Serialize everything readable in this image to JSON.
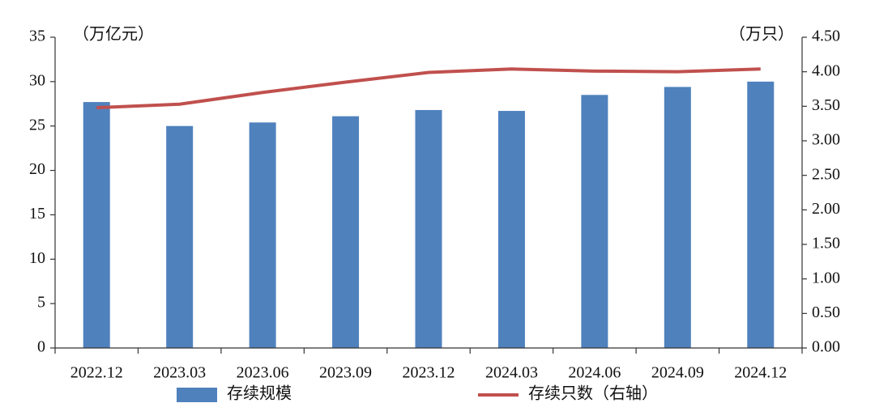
{
  "chart_data": {
    "type": "bar-line",
    "categories": [
      "2022.12",
      "2023.03",
      "2023.06",
      "2023.09",
      "2023.12",
      "2024.03",
      "2024.06",
      "2024.09",
      "2024.12"
    ],
    "y_label": "（万亿元）",
    "y2_label": "（万只）",
    "series": [
      {
        "name": "存续规模",
        "type": "bar",
        "color": "#4f81bd",
        "values": [
          27.7,
          25.0,
          25.4,
          26.1,
          26.8,
          26.7,
          28.5,
          29.4,
          30.0
        ]
      },
      {
        "name": "存续只数（右轴）",
        "type": "line",
        "axis": "y2",
        "color": "#c0504d",
        "values": [
          3.48,
          3.53,
          3.7,
          3.85,
          3.99,
          4.04,
          4.01,
          4.0,
          4.04
        ]
      }
    ],
    "ylim": [
      0,
      35
    ],
    "yticks": [
      0,
      5,
      10,
      15,
      20,
      25,
      30,
      35
    ],
    "y2lim": [
      0,
      4.5
    ],
    "y2ticks": [
      {
        "value": 0,
        "label": "0.00"
      },
      {
        "value": 0.5,
        "label": "0.50"
      },
      {
        "value": 1,
        "label": "1.00"
      },
      {
        "value": 1.5,
        "label": "1.50"
      },
      {
        "value": 2,
        "label": "2.00"
      },
      {
        "value": 2.5,
        "label": "2.50"
      },
      {
        "value": 3,
        "label": "3.00"
      },
      {
        "value": 3.5,
        "label": "3.50"
      },
      {
        "value": 4,
        "label": "4.00"
      },
      {
        "value": 4.5,
        "label": "4.50"
      }
    ]
  }
}
